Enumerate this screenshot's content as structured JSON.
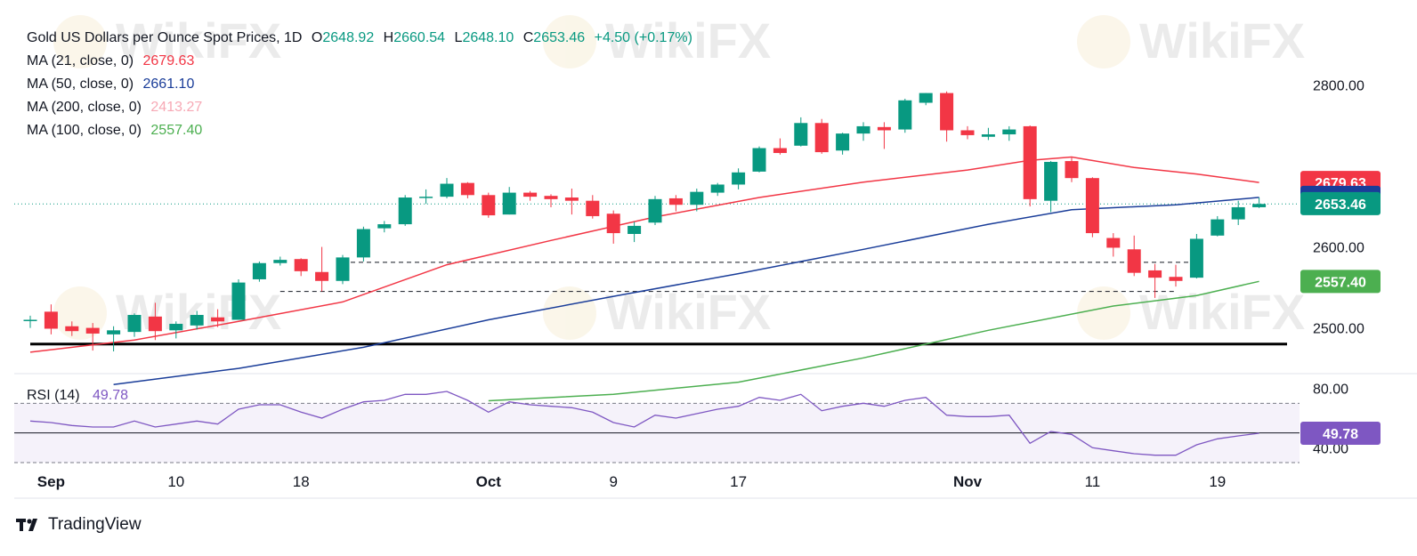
{
  "header": {
    "symbol_title": "Gold US Dollars per Ounce Spot Prices, 1D",
    "open_label": "O",
    "open": "2648.92",
    "high_label": "H",
    "high": "2660.54",
    "low_label": "L",
    "low": "2648.10",
    "close_label": "C",
    "close": "2653.46",
    "change": "+4.50 (+0.17%)"
  },
  "indicators": [
    {
      "label": "MA (21, close, 0)",
      "value": "2679.63",
      "color": "#f23645"
    },
    {
      "label": "MA (50, close, 0)",
      "value": "2661.10",
      "color": "#1a3d99"
    },
    {
      "label": "MA (200, close, 0)",
      "value": "2413.27",
      "color": "#f7a9b5"
    },
    {
      "label": "MA (100, close, 0)",
      "value": "2557.40",
      "color": "#4caf50"
    }
  ],
  "rsi": {
    "label": "RSI (14)",
    "value": "49.78",
    "color": "#7e57c2",
    "ticks": [
      "80.00",
      "40.00"
    ],
    "badge": "49.78"
  },
  "footer": {
    "brand": "TradingView"
  },
  "watermark": "WikiFX",
  "chart_data": {
    "type": "candlestick",
    "colors": {
      "up": "#089981",
      "down": "#f23645"
    },
    "price_ticks": [
      "2800.00",
      "2600.00",
      "2500.00"
    ],
    "price_badges": [
      {
        "text": "2679.63",
        "price": 2679.63,
        "color": "#f23645"
      },
      {
        "text": "2661.10",
        "price": 2661.1,
        "color": "#1a3d99"
      },
      {
        "text": "2653.46",
        "price": 2653.46,
        "color": "#089981"
      },
      {
        "text": "2557.40",
        "price": 2557.4,
        "color": "#4caf50"
      }
    ],
    "x_labels": [
      {
        "text": "Sep",
        "i": 1
      },
      {
        "text": "10",
        "i": 7
      },
      {
        "text": "18",
        "i": 13
      },
      {
        "text": "Oct",
        "i": 22
      },
      {
        "text": "9",
        "i": 28
      },
      {
        "text": "17",
        "i": 34
      },
      {
        "text": "Nov",
        "i": 45
      },
      {
        "text": "11",
        "i": 51
      },
      {
        "text": "19",
        "i": 57
      }
    ],
    "candles": [
      {
        "o": 2510,
        "h": 2515,
        "l": 2500,
        "c": 2510
      },
      {
        "o": 2520,
        "h": 2529,
        "l": 2492,
        "c": 2499
      },
      {
        "o": 2502,
        "h": 2508,
        "l": 2490,
        "c": 2496
      },
      {
        "o": 2500,
        "h": 2506,
        "l": 2472,
        "c": 2493
      },
      {
        "o": 2492,
        "h": 2502,
        "l": 2471,
        "c": 2497
      },
      {
        "o": 2495,
        "h": 2518,
        "l": 2489,
        "c": 2516
      },
      {
        "o": 2514,
        "h": 2531,
        "l": 2485,
        "c": 2496
      },
      {
        "o": 2497,
        "h": 2508,
        "l": 2487,
        "c": 2505
      },
      {
        "o": 2503,
        "h": 2521,
        "l": 2498,
        "c": 2516
      },
      {
        "o": 2513,
        "h": 2523,
        "l": 2501,
        "c": 2508
      },
      {
        "o": 2510,
        "h": 2560,
        "l": 2510,
        "c": 2556
      },
      {
        "o": 2560,
        "h": 2582,
        "l": 2557,
        "c": 2580
      },
      {
        "o": 2580,
        "h": 2588,
        "l": 2577,
        "c": 2584
      },
      {
        "o": 2585,
        "h": 2586,
        "l": 2564,
        "c": 2570
      },
      {
        "o": 2569,
        "h": 2600,
        "l": 2545,
        "c": 2558
      },
      {
        "o": 2558,
        "h": 2590,
        "l": 2554,
        "c": 2587
      },
      {
        "o": 2587,
        "h": 2625,
        "l": 2582,
        "c": 2622
      },
      {
        "o": 2623,
        "h": 2632,
        "l": 2618,
        "c": 2628
      },
      {
        "o": 2628,
        "h": 2664,
        "l": 2626,
        "c": 2661
      },
      {
        "o": 2661,
        "h": 2671,
        "l": 2653,
        "c": 2662
      },
      {
        "o": 2662,
        "h": 2685,
        "l": 2660,
        "c": 2678
      },
      {
        "o": 2679,
        "h": 2680,
        "l": 2660,
        "c": 2664
      },
      {
        "o": 2664,
        "h": 2667,
        "l": 2636,
        "c": 2639
      },
      {
        "o": 2640,
        "h": 2674,
        "l": 2640,
        "c": 2667
      },
      {
        "o": 2667,
        "h": 2669,
        "l": 2657,
        "c": 2662
      },
      {
        "o": 2663,
        "h": 2665,
        "l": 2649,
        "c": 2659
      },
      {
        "o": 2661,
        "h": 2672,
        "l": 2640,
        "c": 2657
      },
      {
        "o": 2657,
        "h": 2664,
        "l": 2635,
        "c": 2638
      },
      {
        "o": 2641,
        "h": 2645,
        "l": 2604,
        "c": 2617
      },
      {
        "o": 2616,
        "h": 2631,
        "l": 2606,
        "c": 2626
      },
      {
        "o": 2630,
        "h": 2663,
        "l": 2627,
        "c": 2659
      },
      {
        "o": 2660,
        "h": 2664,
        "l": 2644,
        "c": 2652
      },
      {
        "o": 2652,
        "h": 2672,
        "l": 2644,
        "c": 2668
      },
      {
        "o": 2667,
        "h": 2679,
        "l": 2663,
        "c": 2677
      },
      {
        "o": 2677,
        "h": 2697,
        "l": 2671,
        "c": 2692
      },
      {
        "o": 2693,
        "h": 2724,
        "l": 2692,
        "c": 2722
      },
      {
        "o": 2722,
        "h": 2734,
        "l": 2714,
        "c": 2716
      },
      {
        "o": 2725,
        "h": 2760,
        "l": 2724,
        "c": 2753
      },
      {
        "o": 2753,
        "h": 2758,
        "l": 2715,
        "c": 2717
      },
      {
        "o": 2719,
        "h": 2741,
        "l": 2714,
        "c": 2740
      },
      {
        "o": 2740,
        "h": 2754,
        "l": 2731,
        "c": 2749
      },
      {
        "o": 2748,
        "h": 2754,
        "l": 2721,
        "c": 2744
      },
      {
        "o": 2745,
        "h": 2783,
        "l": 2741,
        "c": 2781
      },
      {
        "o": 2778,
        "h": 2790,
        "l": 2775,
        "c": 2790
      },
      {
        "o": 2790,
        "h": 2792,
        "l": 2730,
        "c": 2744
      },
      {
        "o": 2744,
        "h": 2749,
        "l": 2733,
        "c": 2738
      },
      {
        "o": 2736,
        "h": 2747,
        "l": 2732,
        "c": 2739
      },
      {
        "o": 2739,
        "h": 2749,
        "l": 2731,
        "c": 2745
      },
      {
        "o": 2749,
        "h": 2750,
        "l": 2650,
        "c": 2659
      },
      {
        "o": 2657,
        "h": 2706,
        "l": 2643,
        "c": 2705
      },
      {
        "o": 2706,
        "h": 2710,
        "l": 2680,
        "c": 2685
      },
      {
        "o": 2685,
        "h": 2686,
        "l": 2612,
        "c": 2617
      },
      {
        "o": 2611,
        "h": 2617,
        "l": 2588,
        "c": 2599
      },
      {
        "o": 2597,
        "h": 2614,
        "l": 2564,
        "c": 2568
      },
      {
        "o": 2571,
        "h": 2579,
        "l": 2537,
        "c": 2562
      },
      {
        "o": 2563,
        "h": 2578,
        "l": 2551,
        "c": 2558
      },
      {
        "o": 2562,
        "h": 2616,
        "l": 2561,
        "c": 2610
      },
      {
        "o": 2614,
        "h": 2638,
        "l": 2613,
        "c": 2634
      },
      {
        "o": 2634,
        "h": 2657,
        "l": 2627,
        "c": 2649
      },
      {
        "o": 2649,
        "h": 2661,
        "l": 2648,
        "c": 2653
      }
    ],
    "ma21": [
      [
        0,
        2470
      ],
      [
        5,
        2485
      ],
      [
        10,
        2508
      ],
      [
        15,
        2532
      ],
      [
        20,
        2578
      ],
      [
        25,
        2608
      ],
      [
        30,
        2637
      ],
      [
        35,
        2661
      ],
      [
        40,
        2680
      ],
      [
        45,
        2695
      ],
      [
        48,
        2707
      ],
      [
        50,
        2711
      ],
      [
        53,
        2698
      ],
      [
        56,
        2690
      ],
      [
        59,
        2679.63
      ]
    ],
    "ma50": [
      [
        4,
        2430
      ],
      [
        10,
        2450
      ],
      [
        16,
        2476
      ],
      [
        22,
        2510
      ],
      [
        28,
        2539
      ],
      [
        34,
        2567
      ],
      [
        40,
        2597
      ],
      [
        46,
        2628
      ],
      [
        50,
        2646
      ],
      [
        55,
        2652
      ],
      [
        59,
        2661.1
      ]
    ],
    "ma100": [
      [
        22,
        2410
      ],
      [
        28,
        2418
      ],
      [
        34,
        2433
      ],
      [
        40,
        2463
      ],
      [
        46,
        2497
      ],
      [
        52,
        2527
      ],
      [
        56,
        2540
      ],
      [
        59,
        2557.4
      ]
    ],
    "support_lines": [
      {
        "price": 2581,
        "from": 15,
        "to": 56
      },
      {
        "price": 2545,
        "from": 12,
        "to": 55
      }
    ],
    "horizontal_line": 2480,
    "price_range": [
      2449,
      2839
    ],
    "rsi_values": [
      [
        0,
        58
      ],
      [
        1,
        57
      ],
      [
        2,
        55
      ],
      [
        3,
        54
      ],
      [
        4,
        54
      ],
      [
        5,
        58
      ],
      [
        6,
        54
      ],
      [
        7,
        56
      ],
      [
        8,
        58
      ],
      [
        9,
        56
      ],
      [
        10,
        66
      ],
      [
        11,
        69
      ],
      [
        12,
        69
      ],
      [
        13,
        64
      ],
      [
        14,
        60
      ],
      [
        15,
        66
      ],
      [
        16,
        71
      ],
      [
        17,
        72
      ],
      [
        18,
        76
      ],
      [
        19,
        76
      ],
      [
        20,
        78
      ],
      [
        21,
        72
      ],
      [
        22,
        64
      ],
      [
        23,
        71
      ],
      [
        24,
        69
      ],
      [
        25,
        68
      ],
      [
        26,
        67
      ],
      [
        27,
        64
      ],
      [
        28,
        57
      ],
      [
        29,
        54
      ],
      [
        30,
        62
      ],
      [
        31,
        60
      ],
      [
        32,
        63
      ],
      [
        33,
        66
      ],
      [
        34,
        68
      ],
      [
        35,
        74
      ],
      [
        36,
        72
      ],
      [
        37,
        76
      ],
      [
        38,
        65
      ],
      [
        39,
        68
      ],
      [
        40,
        70
      ],
      [
        41,
        68
      ],
      [
        42,
        72
      ],
      [
        43,
        74
      ],
      [
        44,
        62
      ],
      [
        45,
        61
      ],
      [
        46,
        61
      ],
      [
        47,
        62
      ],
      [
        48,
        43
      ],
      [
        49,
        51
      ],
      [
        50,
        49
      ],
      [
        51,
        40
      ],
      [
        52,
        38
      ],
      [
        53,
        36
      ],
      [
        54,
        35
      ],
      [
        55,
        35
      ],
      [
        56,
        42
      ],
      [
        57,
        46
      ],
      [
        58,
        48
      ],
      [
        59,
        49.78
      ]
    ],
    "rsi_range": [
      30,
      90
    ],
    "rsi_levels": [
      70,
      50,
      30
    ]
  }
}
